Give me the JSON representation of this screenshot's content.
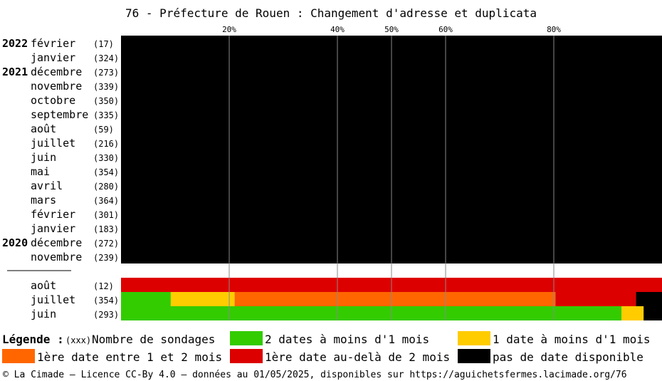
{
  "chart_data": {
    "type": "bar",
    "orientation": "horizontal",
    "stacked": true,
    "title": "76 - Préfecture de Rouen : Changement d'adresse et duplicata",
    "x_ticks": [
      {
        "value": 20,
        "label": "20%"
      },
      {
        "value": 40,
        "label": "40%"
      },
      {
        "value": 50,
        "label": "50%"
      },
      {
        "value": 60,
        "label": "60%"
      },
      {
        "value": 80,
        "label": "80%"
      }
    ],
    "xlim": [
      0,
      100
    ],
    "grid": true,
    "categories_legend": [
      {
        "key": "two_dates",
        "label": "2 dates à moins d'1 mois",
        "color": "#33cc00"
      },
      {
        "key": "one_date",
        "label": "1 date à moins d'1 mois",
        "color": "#ffcc00"
      },
      {
        "key": "first_1_2",
        "label": "1ère date entre 1 et 2 mois",
        "color": "#ff6600"
      },
      {
        "key": "first_over_2",
        "label": "1ère date au-delà de 2 mois",
        "color": "#dd0000"
      },
      {
        "key": "none",
        "label": "pas de date disponible",
        "color": "#000000"
      }
    ],
    "groups": [
      {
        "rows": [
          {
            "year": "2022",
            "month": "février",
            "count": "(17)",
            "segments": [
              0,
              0,
              0,
              0,
              100
            ]
          },
          {
            "year": "",
            "month": "janvier",
            "count": "(324)",
            "segments": [
              0,
              0,
              0,
              0,
              100
            ]
          },
          {
            "year": "2021",
            "month": "décembre",
            "count": "(273)",
            "segments": [
              0,
              0,
              0,
              0,
              100
            ]
          },
          {
            "year": "",
            "month": "novembre",
            "count": "(339)",
            "segments": [
              0,
              0,
              0,
              0,
              100
            ]
          },
          {
            "year": "",
            "month": "octobre",
            "count": "(350)",
            "segments": [
              0,
              0,
              0,
              0,
              100
            ]
          },
          {
            "year": "",
            "month": "septembre",
            "count": "(335)",
            "segments": [
              0,
              0,
              0,
              0,
              100
            ]
          },
          {
            "year": "",
            "month": "août",
            "count": "(59)",
            "segments": [
              0,
              0,
              0,
              0,
              100
            ]
          },
          {
            "year": "",
            "month": "juillet",
            "count": "(216)",
            "segments": [
              0,
              0,
              0,
              0,
              100
            ]
          },
          {
            "year": "",
            "month": "juin",
            "count": "(330)",
            "segments": [
              0,
              0,
              0,
              0,
              100
            ]
          },
          {
            "year": "",
            "month": "mai",
            "count": "(354)",
            "segments": [
              0,
              0,
              0,
              0,
              100
            ]
          },
          {
            "year": "",
            "month": "avril",
            "count": "(280)",
            "segments": [
              0,
              0,
              0,
              0,
              100
            ]
          },
          {
            "year": "",
            "month": "mars",
            "count": "(364)",
            "segments": [
              0,
              0,
              0,
              0,
              100
            ]
          },
          {
            "year": "",
            "month": "février",
            "count": "(301)",
            "segments": [
              0,
              0,
              0,
              0,
              100
            ]
          },
          {
            "year": "",
            "month": "janvier",
            "count": "(183)",
            "segments": [
              0,
              0,
              0,
              0,
              100
            ]
          },
          {
            "year": "2020",
            "month": "décembre",
            "count": "(272)",
            "segments": [
              0,
              0,
              0,
              0,
              100
            ]
          },
          {
            "year": "",
            "month": "novembre",
            "count": "(239)",
            "segments": [
              0,
              0,
              0,
              0,
              100
            ]
          }
        ]
      },
      {
        "rows": [
          {
            "year": "",
            "month": "août",
            "count": "(12)",
            "segments": [
              0,
              0,
              0,
              100,
              0
            ]
          },
          {
            "year": "",
            "month": "juillet",
            "count": "(354)",
            "segments": [
              9.2,
              11.8,
              59.3,
              14.9,
              4.8
            ]
          },
          {
            "year": "",
            "month": "juin",
            "count": "(293)",
            "segments": [
              92.5,
              4.1,
              0,
              0,
              3.4
            ]
          }
        ]
      }
    ]
  },
  "legend": {
    "heading": "Légende :",
    "count_key": "(xxx)",
    "count_label": "Nombre de sondages"
  },
  "footer": {
    "text": "© La Cimade — Licence CC-By 4.0 — données au 01/05/2025, disponibles sur https://aguichetsfermes.lacimade.org/76"
  }
}
